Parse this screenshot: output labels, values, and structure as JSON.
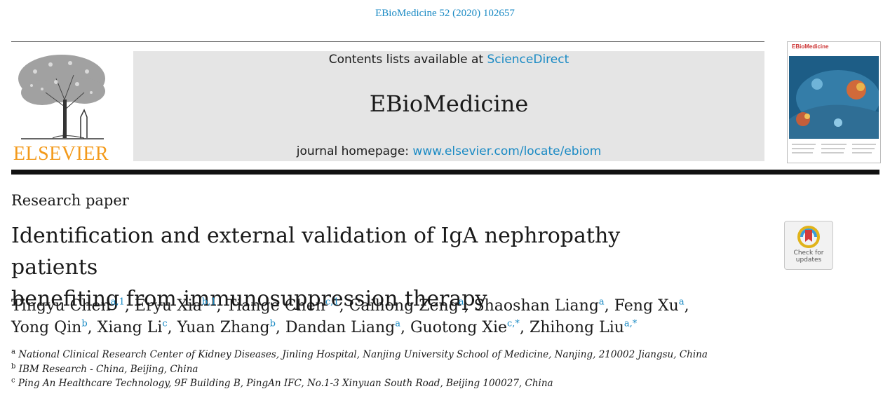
{
  "citation": "EBioMedicine 52 (2020) 102657",
  "publisher": {
    "name": "ELSEVIER",
    "brand_color": "#f39a1b"
  },
  "banner": {
    "contents_prefix": "Contents lists available at ",
    "contents_link": "ScienceDirect",
    "journal_name": "EBioMedicine",
    "homepage_prefix": "journal homepage: ",
    "homepage_link": "www.elsevier.com/locate/ebiom"
  },
  "cover": {
    "title": "EBioMedicine"
  },
  "article_type": "Research paper",
  "title_lines": [
    "Identification and external validation of IgA nephropathy patients",
    "benefiting from immunosuppression therapy"
  ],
  "check_updates": {
    "line1": "Check for",
    "line2": "updates"
  },
  "authors_line1": [
    {
      "name": "Tingyu Chen",
      "sup": "a,1",
      "sep": ", "
    },
    {
      "name": "Eryu Xia",
      "sup": "b,1",
      "sep": ", "
    },
    {
      "name": "Tiange Chen",
      "sup": "c,1",
      "sep": ", "
    },
    {
      "name": "Caihong Zeng",
      "sup": "a",
      "sep": ", "
    },
    {
      "name": "Shaoshan Liang",
      "sup": "a",
      "sep": ", "
    },
    {
      "name": "Feng Xu",
      "sup": "a",
      "sep": ","
    }
  ],
  "authors_line2": [
    {
      "name": "Yong Qin",
      "sup": "b",
      "sep": ", "
    },
    {
      "name": "Xiang Li",
      "sup": "c",
      "sep": ", "
    },
    {
      "name": "Yuan Zhang",
      "sup": "b",
      "sep": ", "
    },
    {
      "name": "Dandan Liang",
      "sup": "a",
      "sep": ", "
    },
    {
      "name": "Guotong Xie",
      "sup": "c,*",
      "sep": ", "
    },
    {
      "name": "Zhihong Liu",
      "sup": "a,*",
      "sep": ""
    }
  ],
  "affiliations": [
    {
      "key": "a",
      "text": "National Clinical Research Center of Kidney Diseases, Jinling Hospital, Nanjing University School of Medicine, Nanjing, 210002 Jiangsu, China"
    },
    {
      "key": "b",
      "text": "IBM Research - China, Beijing, China"
    },
    {
      "key": "c",
      "text": "Ping An Healthcare Technology, 9F Building B, PingAn IFC, No.1-3 Xinyuan South Road, Beijing 100027, China"
    }
  ],
  "colors": {
    "link": "#1a8ac4",
    "banner_bg": "#e5e5e5",
    "rule": "#111111"
  }
}
